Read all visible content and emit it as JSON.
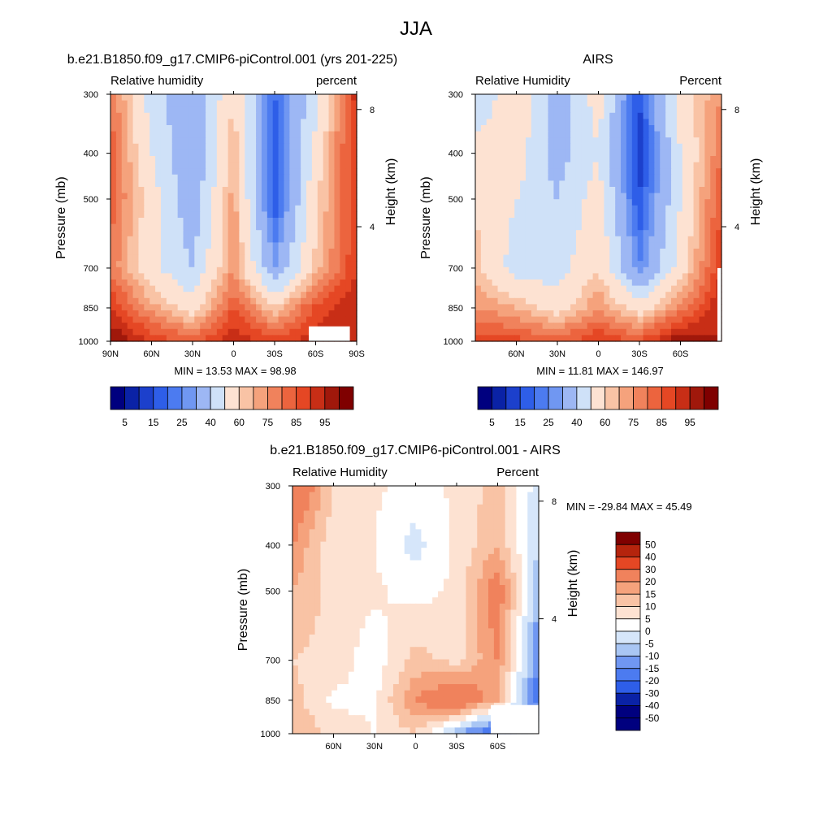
{
  "figure": {
    "title": "JJA",
    "background": "#ffffff"
  },
  "colormaps": {
    "absolute": [
      "#00007f",
      "#0a22a6",
      "#1c40cc",
      "#2e5ee8",
      "#4c7bf0",
      "#7097f2",
      "#9db7f4",
      "#cfe1f8",
      "#fde2d2",
      "#f9c3a5",
      "#f5a27c",
      "#f0825c",
      "#ec643e",
      "#e54724",
      "#c82e16",
      "#a0180b",
      "#7f0000"
    ],
    "difference": [
      "#7f0000",
      "#b5240d",
      "#e54724",
      "#f0825c",
      "#f5a27c",
      "#f9c3a5",
      "#fde2d2",
      "#ffffff",
      "#d6e6fa",
      "#a9c6f4",
      "#7097f2",
      "#4c7bf0",
      "#2e5ee8",
      "#0a22a6",
      "#00007f"
    ]
  },
  "chart_data": [
    {
      "type": "heatmap",
      "id": "model",
      "title": "b.e21.B1850.f09_g17.CMIP6-piControl.001 (yrs 201-225)",
      "left_label": "Relative humidity",
      "right_label": "percent",
      "ylabel": "Pressure (mb)",
      "ylabel_right": "Height (km)",
      "x_ticks": [
        "90N",
        "60N",
        "30N",
        "0",
        "30S",
        "60S",
        "90S"
      ],
      "x_tick_values": [
        90,
        60,
        30,
        0,
        -30,
        -60,
        -90
      ],
      "xlim": [
        90,
        -90
      ],
      "y_ticks": [
        "300",
        "400",
        "500",
        "700",
        "850",
        "1000"
      ],
      "y_tick_values": [
        300,
        400,
        500,
        700,
        850,
        1000
      ],
      "ylim": [
        300,
        1000
      ],
      "y_scale": "log",
      "height_ticks": [
        "8",
        "4"
      ],
      "height_tick_values": [
        8,
        4
      ],
      "stats": "MIN =  13.53  MAX =  98.98",
      "colorbar": {
        "orientation": "horizontal",
        "levels": [
          5,
          10,
          15,
          20,
          25,
          30,
          40,
          50,
          60,
          65,
          70,
          75,
          80,
          85,
          90,
          95
        ],
        "labels": [
          "5",
          "15",
          "25",
          "40",
          "60",
          "75",
          "85",
          "95"
        ]
      },
      "field": {
        "lat": [
          90,
          60,
          30,
          0,
          -30,
          -60,
          -90
        ],
        "plev": [
          300,
          400,
          500,
          700,
          850,
          1000
        ],
        "values": [
          [
            75,
            45,
            30,
            60,
            20,
            45,
            88
          ],
          [
            78,
            50,
            30,
            65,
            15,
            55,
            86
          ],
          [
            78,
            55,
            32,
            68,
            15,
            58,
            84
          ],
          [
            74,
            52,
            40,
            70,
            30,
            62,
            85
          ],
          [
            85,
            68,
            55,
            80,
            60,
            82,
            90
          ],
          [
            96,
            84,
            78,
            90,
            82,
            88,
            90
          ]
        ],
        "missing_region": {
          "lat_from": -55,
          "lat_to": -85,
          "plev_from": 930,
          "plev_to": 1000
        }
      }
    },
    {
      "type": "heatmap",
      "id": "obs",
      "title": "AIRS",
      "left_label": "Relative Humidity",
      "right_label": "Percent",
      "ylabel": "Pressure (mb)",
      "ylabel_right": "Height (km)",
      "x_ticks": [
        "60N",
        "30N",
        "0",
        "30S",
        "60S"
      ],
      "x_tick_values": [
        60,
        30,
        0,
        -30,
        -60
      ],
      "xlim": [
        90,
        -90
      ],
      "y_ticks": [
        "300",
        "400",
        "500",
        "700",
        "850",
        "1000"
      ],
      "y_tick_values": [
        300,
        400,
        500,
        700,
        850,
        1000
      ],
      "ylim": [
        300,
        1000
      ],
      "y_scale": "log",
      "height_ticks": [
        "8",
        "4"
      ],
      "height_tick_values": [
        8,
        4
      ],
      "stats": "MIN =  11.81  MAX = 146.97",
      "colorbar": {
        "orientation": "horizontal",
        "levels": [
          5,
          10,
          15,
          20,
          25,
          30,
          40,
          50,
          60,
          65,
          70,
          75,
          80,
          85,
          90,
          95
        ],
        "labels": [
          "5",
          "15",
          "25",
          "40",
          "60",
          "75",
          "85",
          "95"
        ]
      },
      "field": {
        "lat": [
          90,
          60,
          30,
          0,
          -30,
          -60,
          -90
        ],
        "plev": [
          300,
          400,
          500,
          700,
          850,
          1000
        ],
        "values": [
          [
            40,
            60,
            35,
            55,
            15,
            55,
            70
          ],
          [
            55,
            55,
            35,
            50,
            12,
            50,
            75
          ],
          [
            60,
            50,
            40,
            55,
            15,
            50,
            80
          ],
          [
            62,
            45,
            45,
            60,
            25,
            55,
            85
          ],
          [
            70,
            65,
            55,
            70,
            55,
            72,
            90
          ],
          [
            82,
            82,
            78,
            85,
            80,
            95,
            90
          ]
        ],
        "missing_region": {
          "lat_from": -87,
          "lat_to": -90,
          "plev_from": 700,
          "plev_to": 1000
        }
      }
    },
    {
      "type": "heatmap",
      "id": "diff",
      "title": "b.e21.B1850.f09_g17.CMIP6-piControl.001 - AIRS",
      "left_label": "Relative Humidity",
      "right_label": "Percent",
      "ylabel": "Pressure (mb)",
      "ylabel_right": "Height (km)",
      "x_ticks": [
        "60N",
        "30N",
        "0",
        "30S",
        "60S"
      ],
      "x_tick_values": [
        60,
        30,
        0,
        -30,
        -60
      ],
      "xlim": [
        90,
        -90
      ],
      "y_ticks": [
        "300",
        "400",
        "500",
        "700",
        "850",
        "1000"
      ],
      "y_tick_values": [
        300,
        400,
        500,
        700,
        850,
        1000
      ],
      "ylim": [
        300,
        1000
      ],
      "y_scale": "log",
      "height_ticks": [
        "8",
        "4"
      ],
      "height_tick_values": [
        8,
        4
      ],
      "stats": "MIN = -29.84  MAX =  45.49",
      "colorbar": {
        "orientation": "vertical",
        "levels": [
          50,
          40,
          30,
          20,
          15,
          10,
          5,
          0,
          -5,
          -10,
          -15,
          -20,
          -30,
          -40,
          -50
        ],
        "labels": [
          "50",
          "40",
          "30",
          "20",
          "15",
          "10",
          "5",
          "0",
          "-5",
          "-10",
          "-15",
          "-20",
          "-30",
          "-40",
          "-50"
        ]
      },
      "field": {
        "lat": [
          90,
          60,
          30,
          0,
          -30,
          -60,
          -90
        ],
        "plev": [
          300,
          400,
          500,
          700,
          850,
          1000
        ],
        "values": [
          [
            30,
            10,
            6,
            3,
            6,
            12,
            -3
          ],
          [
            20,
            6,
            5,
            -2,
            6,
            15,
            -5
          ],
          [
            15,
            8,
            6,
            3,
            6,
            25,
            -10
          ],
          [
            10,
            8,
            2,
            12,
            8,
            20,
            -15
          ],
          [
            12,
            4,
            4,
            20,
            30,
            15,
            -20
          ],
          [
            15,
            8,
            5,
            10,
            -10,
            -25,
            5
          ]
        ],
        "missing_region": {
          "lat_from": -55,
          "lat_to": -90,
          "plev_from": 870,
          "plev_to": 1000
        }
      }
    }
  ]
}
